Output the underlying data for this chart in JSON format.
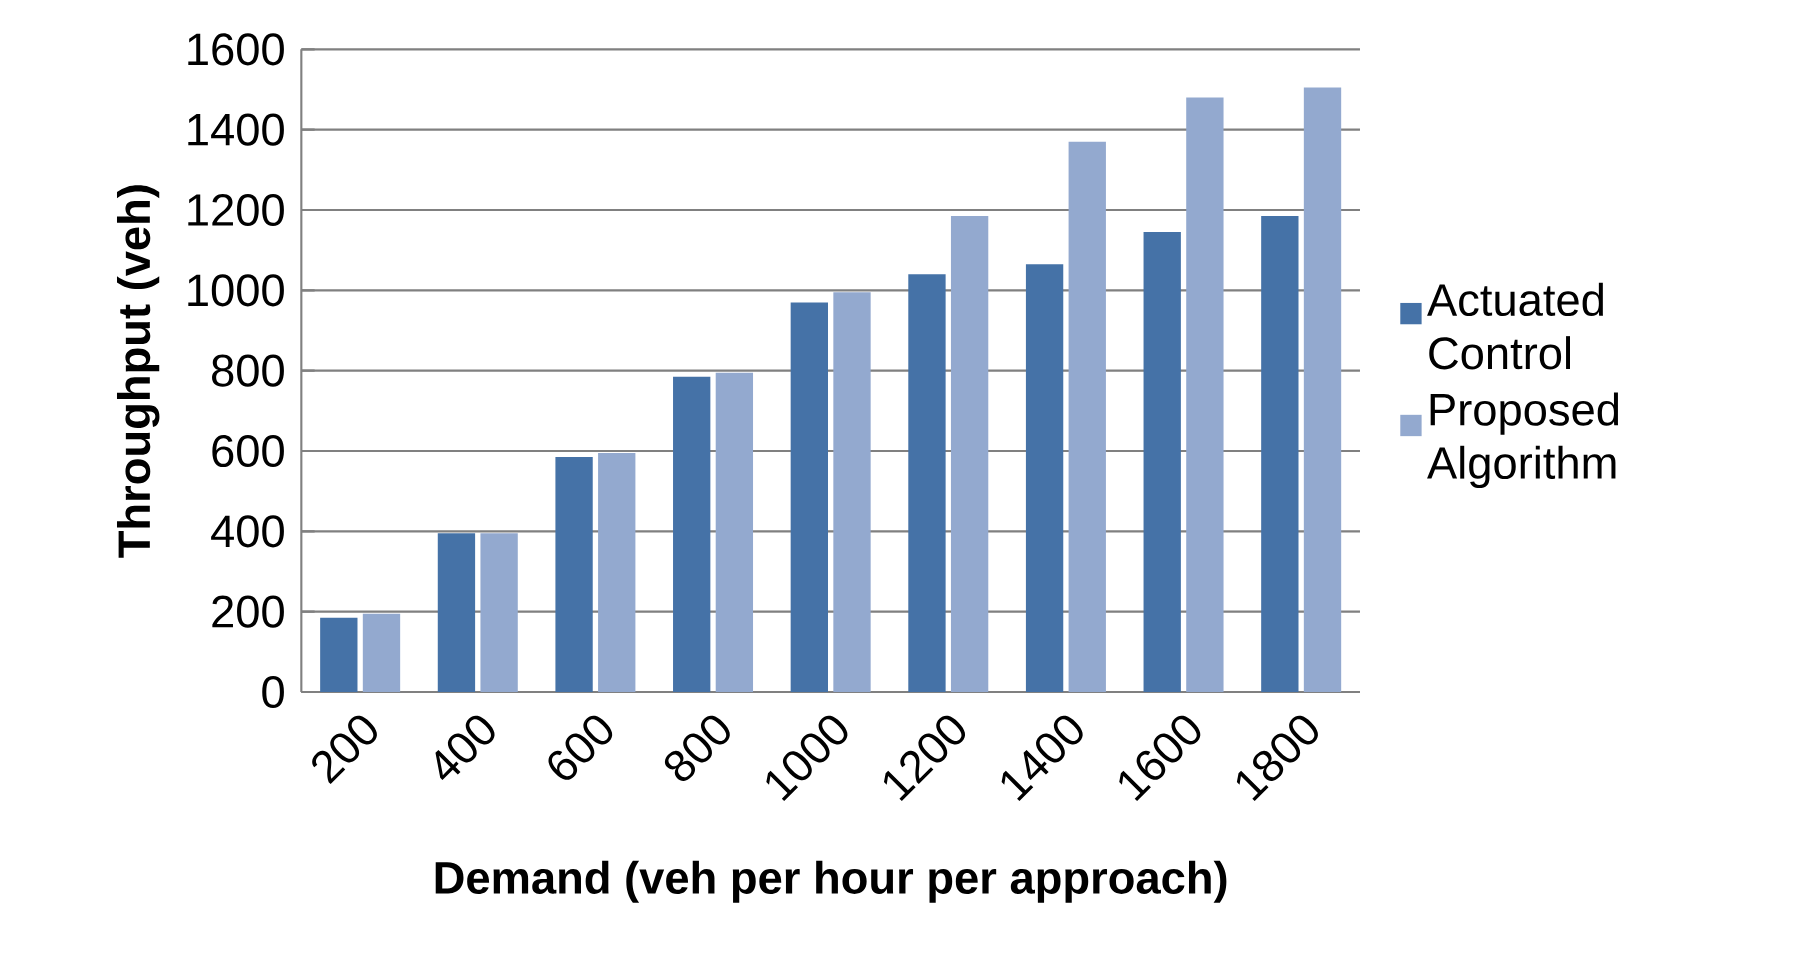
{
  "chart_data": {
    "type": "bar",
    "xlabel": "Demand (veh per hour per approach)",
    "ylabel": "Throughput (veh)",
    "categories": [
      "200",
      "400",
      "600",
      "800",
      "1000",
      "1200",
      "1400",
      "1600",
      "1800"
    ],
    "series": [
      {
        "name": "Actuated Control",
        "color": "#4572a7",
        "values": [
          185,
          395,
          585,
          785,
          970,
          1040,
          1065,
          1145,
          1185
        ]
      },
      {
        "name": "Proposed Algorithm",
        "color": "#93a9cf",
        "values": [
          195,
          395,
          595,
          795,
          995,
          1185,
          1370,
          1480,
          1505
        ]
      }
    ],
    "ylim": [
      0,
      1600
    ],
    "yticks": [
      0,
      200,
      400,
      600,
      800,
      1000,
      1200,
      1400,
      1600
    ],
    "grid": "y",
    "legend": "right"
  }
}
